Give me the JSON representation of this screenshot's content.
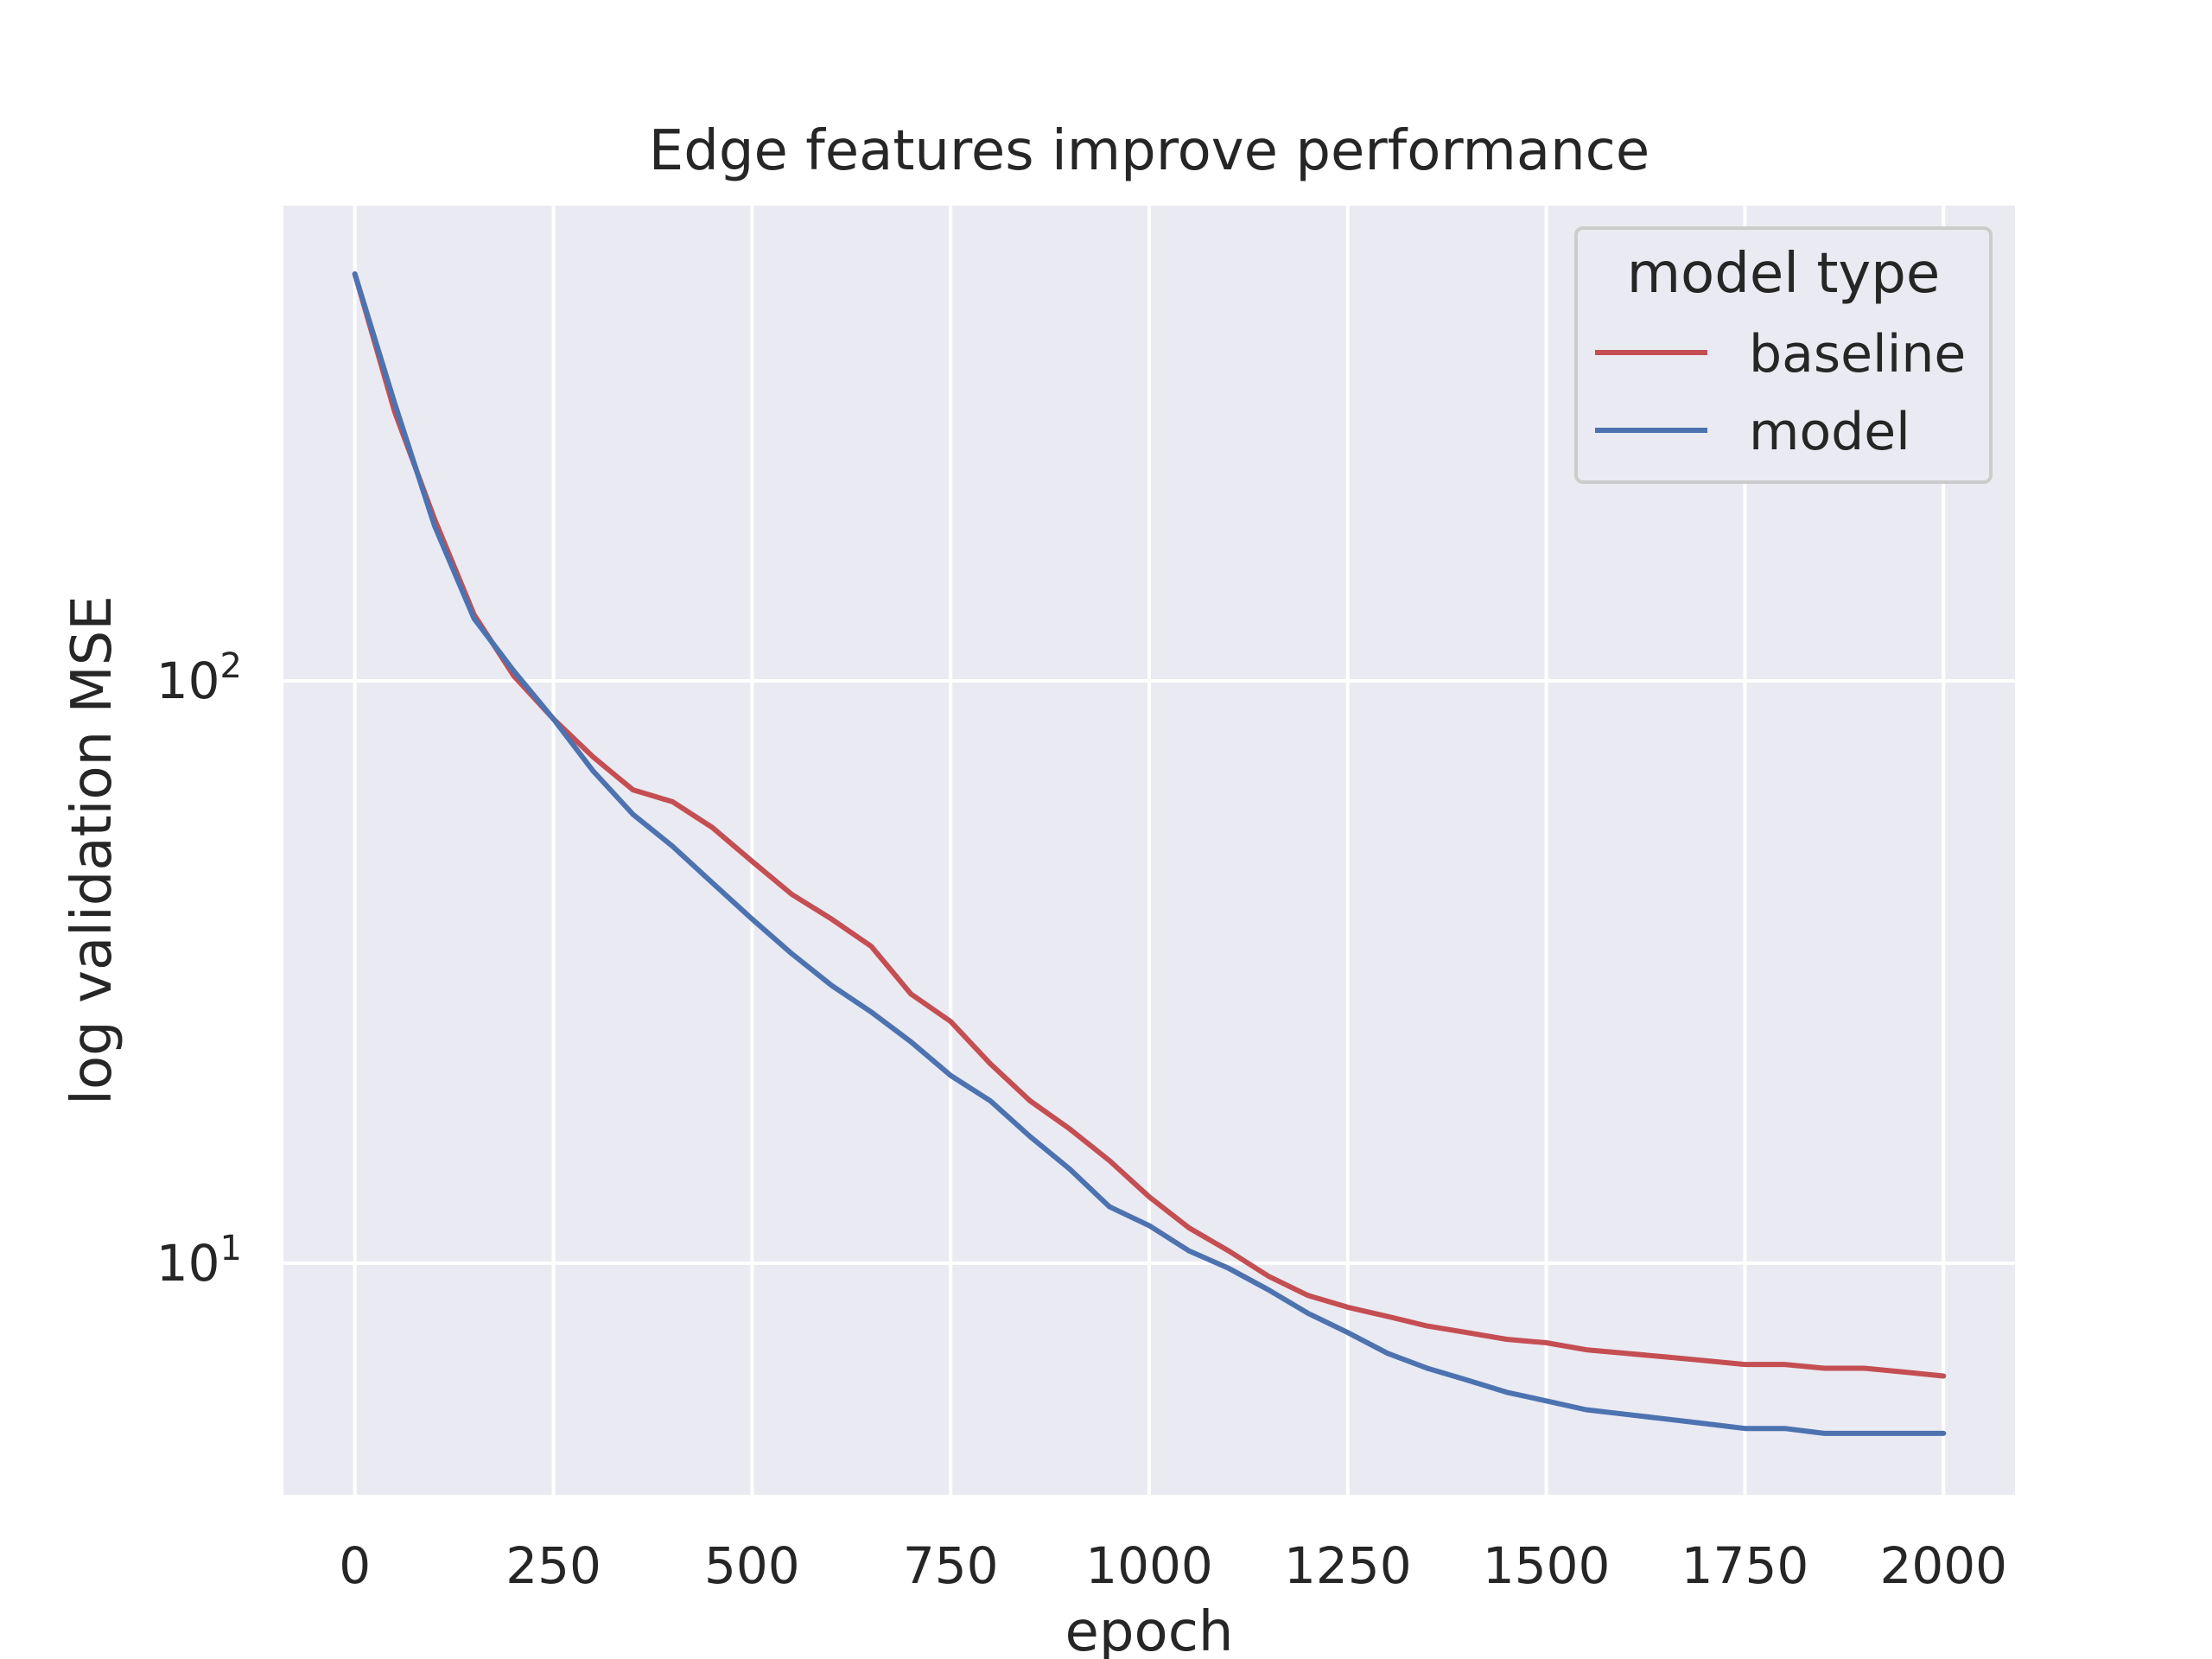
{
  "chart_data": {
    "type": "line",
    "title": "Edge features improve performance",
    "xlabel": "epoch",
    "ylabel": "log validation MSE",
    "yscale": "log",
    "xlim": [
      -90,
      2090
    ],
    "ylim": [
      4.0,
      655
    ],
    "grid": true,
    "legend": {
      "title": "model type",
      "placement": "top-right"
    },
    "xticks": [
      {
        "value": 0,
        "label": "0"
      },
      {
        "value": 250,
        "label": "250"
      },
      {
        "value": 500,
        "label": "500"
      },
      {
        "value": 750,
        "label": "750"
      },
      {
        "value": 1000,
        "label": "1000"
      },
      {
        "value": 1250,
        "label": "1250"
      },
      {
        "value": 1500,
        "label": "1500"
      },
      {
        "value": 1750,
        "label": "1750"
      },
      {
        "value": 2000,
        "label": "2000"
      }
    ],
    "yticks": [
      {
        "value": 10,
        "base": "10",
        "exp": "1"
      },
      {
        "value": 100,
        "base": "10",
        "exp": "2"
      }
    ],
    "series": [
      {
        "name": "baseline",
        "color": "#c44e52",
        "x": [
          0,
          50,
          100,
          150,
          200,
          250,
          300,
          350,
          400,
          450,
          500,
          550,
          600,
          650,
          700,
          750,
          800,
          850,
          900,
          950,
          1000,
          1050,
          1100,
          1150,
          1200,
          1250,
          1300,
          1350,
          1400,
          1450,
          1500,
          1550,
          1600,
          1650,
          1700,
          1750,
          1800,
          1850,
          1900,
          1950,
          2000
        ],
        "y": [
          500,
          290,
          190,
          130,
          102,
          86,
          74,
          65,
          62,
          56,
          49,
          43,
          39,
          35,
          29,
          26,
          22,
          19,
          17,
          15,
          13,
          11.5,
          10.5,
          9.5,
          8.8,
          8.4,
          8.1,
          7.8,
          7.6,
          7.4,
          7.3,
          7.1,
          7.0,
          6.9,
          6.8,
          6.7,
          6.7,
          6.6,
          6.6,
          6.5,
          6.4
        ]
      },
      {
        "name": "model",
        "color": "#4c72b0",
        "x": [
          0,
          50,
          100,
          150,
          200,
          250,
          300,
          350,
          400,
          450,
          500,
          550,
          600,
          650,
          700,
          750,
          800,
          850,
          900,
          950,
          1000,
          1050,
          1100,
          1150,
          1200,
          1250,
          1300,
          1350,
          1400,
          1450,
          1500,
          1550,
          1600,
          1650,
          1700,
          1750,
          1800,
          1850,
          1900,
          1950,
          2000
        ],
        "y": [
          500,
          300,
          185,
          128,
          104,
          86,
          70,
          59,
          52,
          45,
          39,
          34,
          30,
          27,
          24,
          21,
          19,
          16.5,
          14.5,
          12.5,
          11.6,
          10.5,
          9.8,
          9.0,
          8.2,
          7.6,
          7.0,
          6.6,
          6.3,
          6.0,
          5.8,
          5.6,
          5.5,
          5.4,
          5.3,
          5.2,
          5.2,
          5.1,
          5.1,
          5.1,
          5.1
        ]
      }
    ]
  }
}
